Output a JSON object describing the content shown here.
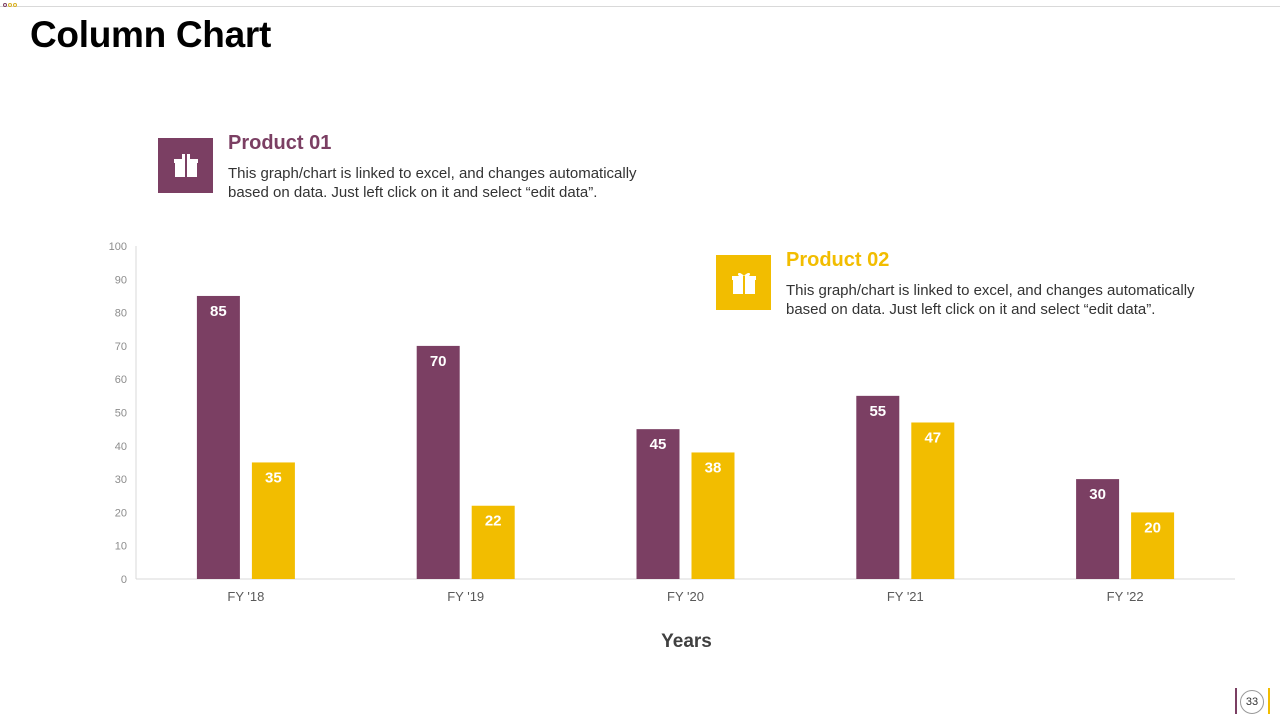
{
  "slide": {
    "title": "Column Chart",
    "page_number": "33"
  },
  "legend": [
    {
      "name": "Product 01",
      "description": "This graph/chart is linked to excel, and changes automatically based on data. Just left click on it and select “edit data”.",
      "icon": "gift-box-icon",
      "color": "#7b3f63"
    },
    {
      "name": "Product 02",
      "description": "This graph/chart is linked to excel, and changes automatically based on data. Just left click on it and select “edit data”.",
      "icon": "gift-box-icon",
      "color": "#f2bd00"
    }
  ],
  "chart_data": {
    "type": "bar",
    "title": "",
    "xlabel": "Years",
    "ylabel": "",
    "ylim": [
      0,
      100
    ],
    "yticks": [
      0,
      10,
      20,
      30,
      40,
      50,
      60,
      70,
      80,
      90,
      100
    ],
    "categories": [
      "FY '18",
      "FY '19",
      "FY '20",
      "FY '21",
      "FY '22"
    ],
    "series": [
      {
        "name": "Product 01",
        "values": [
          85,
          70,
          45,
          55,
          30
        ],
        "color": "#7b3f63"
      },
      {
        "name": "Product 02",
        "values": [
          35,
          22,
          38,
          47,
          20
        ],
        "color": "#f2bd00"
      }
    ],
    "grid": false,
    "data_labels": true
  }
}
